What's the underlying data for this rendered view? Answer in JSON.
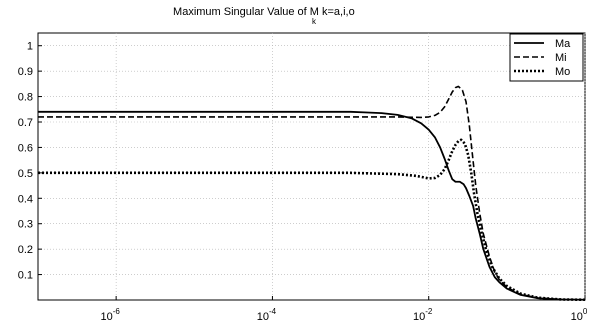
{
  "chart_data": {
    "type": "line",
    "title": {
      "main": "Maximum Singular Value of M",
      "subscript": "k",
      "suffix": "k=a,i,o"
    },
    "xlabel": "",
    "ylabel": "",
    "x_scale": "log",
    "xlim": [
      1e-07,
      1
    ],
    "ylim": [
      0,
      1.05
    ],
    "x_ticks": [
      {
        "base": "10",
        "exp": "-6",
        "value": 1e-06
      },
      {
        "base": "10",
        "exp": "-4",
        "value": 0.0001
      },
      {
        "base": "10",
        "exp": "-2",
        "value": 0.01
      },
      {
        "base": "10",
        "exp": "0",
        "value": 1
      }
    ],
    "y_ticks": [
      "0.1",
      "0.2",
      "0.3",
      "0.4",
      "0.5",
      "0.6",
      "0.7",
      "0.8",
      "0.9",
      "1"
    ],
    "grid": true,
    "legend_position": "top-right",
    "series": [
      {
        "name": "Ma",
        "style": "solid",
        "color": "#000000",
        "points": [
          [
            1e-07,
            0.74
          ],
          [
            1e-05,
            0.74
          ],
          [
            0.001,
            0.74
          ],
          [
            0.0015,
            0.738
          ],
          [
            0.0025,
            0.735
          ],
          [
            0.004,
            0.728
          ],
          [
            0.006,
            0.715
          ],
          [
            0.008,
            0.695
          ],
          [
            0.01,
            0.67
          ],
          [
            0.012,
            0.64
          ],
          [
            0.014,
            0.6
          ],
          [
            0.016,
            0.555
          ],
          [
            0.018,
            0.51
          ],
          [
            0.02,
            0.475
          ],
          [
            0.022,
            0.465
          ],
          [
            0.025,
            0.465
          ],
          [
            0.028,
            0.455
          ],
          [
            0.03,
            0.44
          ],
          [
            0.033,
            0.41
          ],
          [
            0.037,
            0.37
          ],
          [
            0.04,
            0.32
          ],
          [
            0.045,
            0.26
          ],
          [
            0.05,
            0.2
          ],
          [
            0.06,
            0.13
          ],
          [
            0.07,
            0.09
          ],
          [
            0.08,
            0.07
          ],
          [
            0.1,
            0.045
          ],
          [
            0.15,
            0.02
          ],
          [
            0.25,
            0.007
          ],
          [
            0.5,
            0.002
          ],
          [
            1,
            0.001
          ]
        ]
      },
      {
        "name": "Mi",
        "style": "dashed",
        "color": "#000000",
        "points": [
          [
            1e-07,
            0.72
          ],
          [
            1e-05,
            0.72
          ],
          [
            0.001,
            0.72
          ],
          [
            0.004,
            0.72
          ],
          [
            0.008,
            0.718
          ],
          [
            0.01,
            0.72
          ],
          [
            0.012,
            0.726
          ],
          [
            0.014,
            0.738
          ],
          [
            0.016,
            0.76
          ],
          [
            0.018,
            0.79
          ],
          [
            0.02,
            0.818
          ],
          [
            0.022,
            0.835
          ],
          [
            0.024,
            0.84
          ],
          [
            0.027,
            0.825
          ],
          [
            0.03,
            0.78
          ],
          [
            0.033,
            0.69
          ],
          [
            0.036,
            0.58
          ],
          [
            0.04,
            0.45
          ],
          [
            0.045,
            0.34
          ],
          [
            0.05,
            0.26
          ],
          [
            0.06,
            0.17
          ],
          [
            0.07,
            0.11
          ],
          [
            0.08,
            0.08
          ],
          [
            0.1,
            0.05
          ],
          [
            0.15,
            0.022
          ],
          [
            0.25,
            0.008
          ],
          [
            0.5,
            0.002
          ],
          [
            1,
            0.001
          ]
        ]
      },
      {
        "name": "Mo",
        "style": "dotted",
        "color": "#000000",
        "points": [
          [
            1e-07,
            0.5
          ],
          [
            1e-05,
            0.5
          ],
          [
            0.001,
            0.5
          ],
          [
            0.004,
            0.495
          ],
          [
            0.007,
            0.488
          ],
          [
            0.01,
            0.478
          ],
          [
            0.012,
            0.48
          ],
          [
            0.014,
            0.492
          ],
          [
            0.016,
            0.515
          ],
          [
            0.018,
            0.55
          ],
          [
            0.02,
            0.585
          ],
          [
            0.022,
            0.61
          ],
          [
            0.024,
            0.625
          ],
          [
            0.026,
            0.63
          ],
          [
            0.029,
            0.615
          ],
          [
            0.032,
            0.57
          ],
          [
            0.035,
            0.5
          ],
          [
            0.038,
            0.42
          ],
          [
            0.042,
            0.34
          ],
          [
            0.048,
            0.26
          ],
          [
            0.055,
            0.19
          ],
          [
            0.065,
            0.13
          ],
          [
            0.08,
            0.085
          ],
          [
            0.1,
            0.055
          ],
          [
            0.15,
            0.025
          ],
          [
            0.25,
            0.009
          ],
          [
            0.5,
            0.002
          ],
          [
            1,
            0.001
          ]
        ]
      }
    ]
  }
}
